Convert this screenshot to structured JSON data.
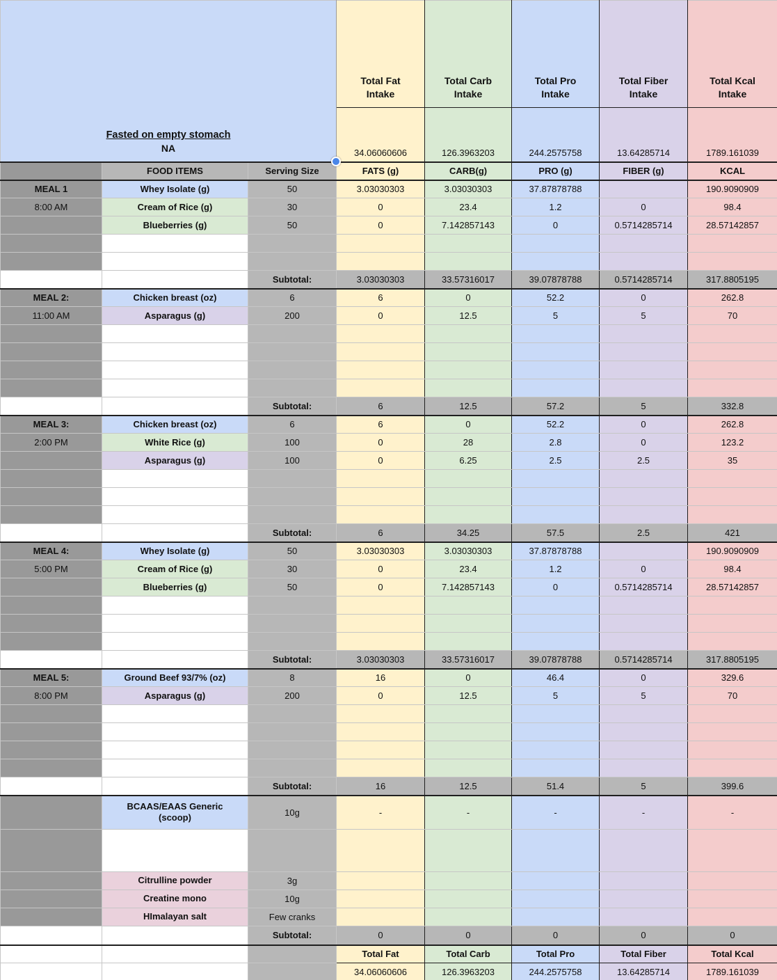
{
  "palette": {
    "fat": "#FFF2CC",
    "carb": "#D9EAD3",
    "pro": "#C9DAF8",
    "fiber": "#D9D2E9",
    "kcal": "#F4CCCC",
    "note_blue": "#C9DAF8",
    "gray_dark": "#999999",
    "gray_mid": "#B7B7B7",
    "food_blue": "#C9DAF8",
    "food_green": "#D9EAD3",
    "food_purple": "#D9D2E9",
    "food_pink": "#EAD1DC",
    "selection_blue": "#4a86e8",
    "white": "#FFFFFF"
  },
  "note_cell": {
    "title": "Fasted on empty stomach",
    "subtitle": "NA"
  },
  "intake_summary": [
    {
      "label": "Total Fat\nIntake",
      "value": "34.06060606",
      "color_key": "fat"
    },
    {
      "label": "Total Carb\nIntake",
      "value": "126.3963203",
      "color_key": "carb"
    },
    {
      "label": "Total Pro\nIntake",
      "value": "244.2575758",
      "color_key": "pro"
    },
    {
      "label": "Total Fiber\nIntake",
      "value": "13.64285714",
      "color_key": "fiber"
    },
    {
      "label": "Total Kcal\nIntake",
      "value": "1789.161039",
      "color_key": "kcal"
    }
  ],
  "column_headers": {
    "food": "FOOD ITEMS",
    "serving": "Serving Size",
    "macros": [
      "FATS (g)",
      "CARB(g)",
      "PRO (g)",
      "FIBER (g)",
      "KCAL"
    ]
  },
  "subtotal_label": "Subtotal:",
  "meals": [
    {
      "label": "MEAL 1",
      "time": "8:00 AM",
      "empty_rows": 2,
      "items": [
        {
          "name": "Whey Isolate (g)",
          "color_key": "food_blue",
          "serving": "50",
          "values": [
            "3.03030303",
            "3.03030303",
            "37.87878788",
            "",
            "190.9090909"
          ]
        },
        {
          "name": "Cream of Rice (g)",
          "color_key": "food_green",
          "serving": "30",
          "values": [
            "0",
            "23.4",
            "1.2",
            "0",
            "98.4"
          ]
        },
        {
          "name": "Blueberries (g)",
          "color_key": "food_green",
          "serving": "50",
          "values": [
            "0",
            "7.142857143",
            "0",
            "0.5714285714",
            "28.57142857"
          ]
        }
      ],
      "subtotal": [
        "3.03030303",
        "33.57316017",
        "39.07878788",
        "0.5714285714",
        "317.8805195"
      ]
    },
    {
      "label": "MEAL 2:",
      "time": "11:00 AM",
      "empty_rows": 4,
      "items": [
        {
          "name": "Chicken breast (oz)",
          "color_key": "food_blue",
          "serving": "6",
          "values": [
            "6",
            "0",
            "52.2",
            "0",
            "262.8"
          ]
        },
        {
          "name": "Asparagus  (g)",
          "color_key": "food_purple",
          "serving": "200",
          "values": [
            "0",
            "12.5",
            "5",
            "5",
            "70"
          ]
        }
      ],
      "subtotal": [
        "6",
        "12.5",
        "57.2",
        "5",
        "332.8"
      ]
    },
    {
      "label": "MEAL 3:",
      "time": "2:00 PM",
      "empty_rows": 3,
      "items": [
        {
          "name": "Chicken breast (oz)",
          "color_key": "food_blue",
          "serving": "6",
          "values": [
            "6",
            "0",
            "52.2",
            "0",
            "262.8"
          ]
        },
        {
          "name": "White Rice  (g)",
          "color_key": "food_green",
          "serving": "100",
          "values": [
            "0",
            "28",
            "2.8",
            "0",
            "123.2"
          ]
        },
        {
          "name": "Asparagus  (g)",
          "color_key": "food_purple",
          "serving": "100",
          "values": [
            "0",
            "6.25",
            "2.5",
            "2.5",
            "35"
          ]
        }
      ],
      "subtotal": [
        "6",
        "34.25",
        "57.5",
        "2.5",
        "421"
      ]
    },
    {
      "label": "MEAL 4:",
      "time": "5:00 PM",
      "empty_rows": 3,
      "items": [
        {
          "name": "Whey Isolate (g)",
          "color_key": "food_blue",
          "serving": "50",
          "values": [
            "3.03030303",
            "3.03030303",
            "37.87878788",
            "",
            "190.9090909"
          ]
        },
        {
          "name": "Cream of Rice (g)",
          "color_key": "food_green",
          "serving": "30",
          "values": [
            "0",
            "23.4",
            "1.2",
            "0",
            "98.4"
          ]
        },
        {
          "name": "Blueberries (g)",
          "color_key": "food_green",
          "serving": "50",
          "values": [
            "0",
            "7.142857143",
            "0",
            "0.5714285714",
            "28.57142857"
          ]
        }
      ],
      "subtotal": [
        "3.03030303",
        "33.57316017",
        "39.07878788",
        "0.5714285714",
        "317.8805195"
      ]
    },
    {
      "label": "MEAL 5:",
      "time": "8:00 PM",
      "empty_rows": 4,
      "items": [
        {
          "name": "Ground Beef 93/7% (oz)",
          "color_key": "food_blue",
          "serving": "8",
          "values": [
            "16",
            "0",
            "46.4",
            "0",
            "329.6"
          ]
        },
        {
          "name": "Asparagus  (g)",
          "color_key": "food_purple",
          "serving": "200",
          "values": [
            "0",
            "12.5",
            "5",
            "5",
            "70"
          ]
        }
      ],
      "subtotal": [
        "16",
        "12.5",
        "51.4",
        "5",
        "399.6"
      ]
    }
  ],
  "supplements": {
    "items": [
      {
        "name": "BCAAS/EAAS Generic\n(scoop)",
        "color_key": "food_blue",
        "serving": "10g",
        "values": [
          "-",
          "-",
          "-",
          "-",
          "-"
        ]
      },
      {
        "name": "Citrulline powder",
        "color_key": "food_pink",
        "serving": "3g",
        "values": [
          "",
          "",
          "",
          "",
          ""
        ]
      },
      {
        "name": "Creatine mono",
        "color_key": "food_pink",
        "serving": "10g",
        "values": [
          "",
          "",
          "",
          "",
          ""
        ]
      },
      {
        "name": "HImalayan salt",
        "color_key": "food_pink",
        "serving": "Few cranks",
        "values": [
          "",
          "",
          "",
          "",
          ""
        ]
      }
    ],
    "subtotal": [
      "0",
      "0",
      "0",
      "0",
      "0"
    ]
  },
  "grand_totals": {
    "labels": [
      "Total Fat",
      "Total Carb",
      "Total Pro",
      "Total Fiber",
      "Total Kcal"
    ],
    "values": [
      "34.06060606",
      "126.3963203",
      "244.2575758",
      "13.64285714",
      "1789.161039"
    ]
  }
}
